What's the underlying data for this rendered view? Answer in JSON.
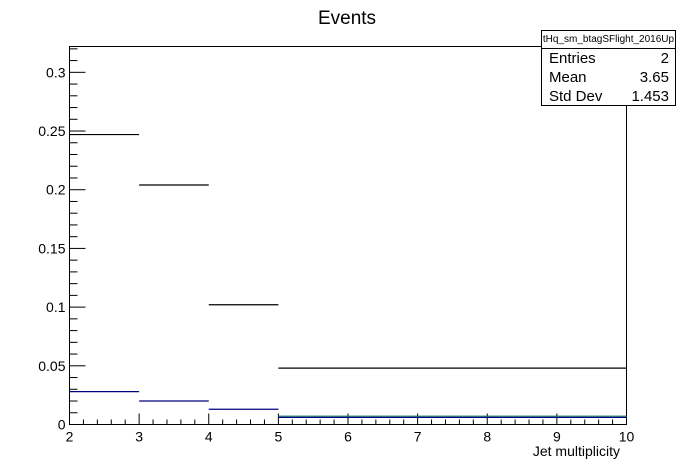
{
  "chart_data": {
    "type": "histogram",
    "title": "Events",
    "xlabel": "Jet multiplicity",
    "ylabel": "",
    "xlim": [
      2,
      10
    ],
    "ylim": [
      0,
      0.322
    ],
    "x_ticks": [
      "2",
      "3",
      "4",
      "5",
      "6",
      "7",
      "8",
      "9",
      "10"
    ],
    "y_ticks": [
      "0",
      "0.05",
      "0.1",
      "0.15",
      "0.2",
      "0.25",
      "0.3"
    ],
    "bin_edges": [
      2,
      3,
      4,
      5,
      10
    ],
    "series": [
      {
        "color": "#000000",
        "values": [
          0.247,
          0.204,
          0.102,
          0.048
        ]
      },
      {
        "color": "#000080",
        "values": [
          0.028,
          0.02,
          0.013,
          0.006
        ]
      },
      {
        "color": "#1a6b6b",
        "values": [
          0,
          0,
          0,
          0.007
        ]
      }
    ],
    "stats": {
      "title": "tHq_sm_btagSFlight_2016Up",
      "rows": [
        {
          "label": "Entries",
          "value": "2"
        },
        {
          "label": "Mean",
          "value": "3.65"
        },
        {
          "label": "Std Dev",
          "value": "1.453"
        }
      ]
    }
  }
}
